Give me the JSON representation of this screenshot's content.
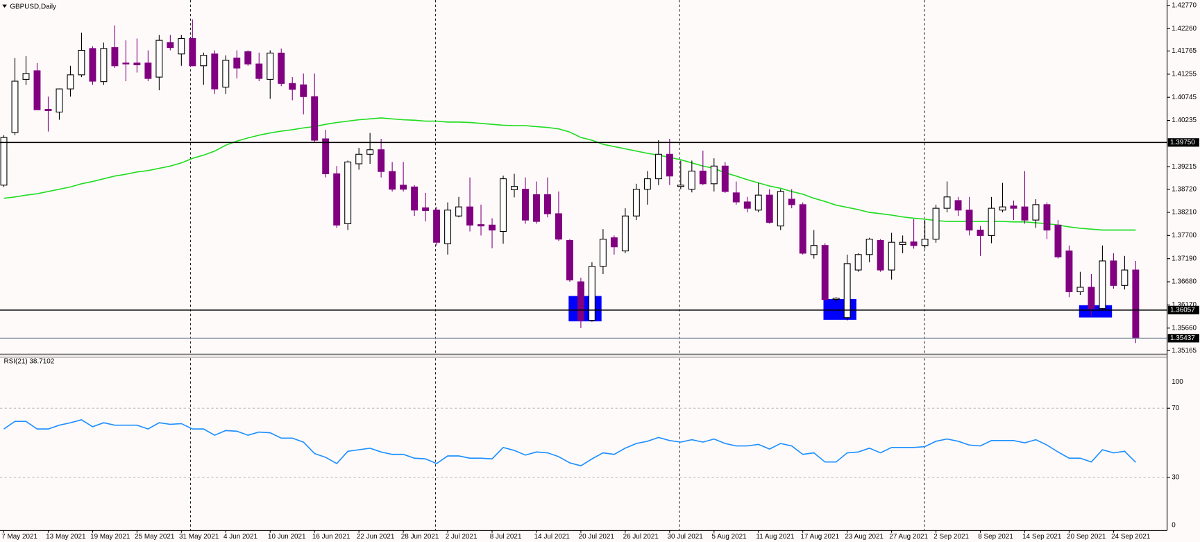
{
  "chart_data": [
    {
      "type": "candlestick",
      "title": "GBPUSD,Daily",
      "categories": [
        "7 May 2021",
        null,
        null,
        null,
        "13 May 2021",
        null,
        null,
        null,
        "19 May 2021",
        null,
        null,
        null,
        "25 May 2021",
        null,
        null,
        null,
        "31 May 2021",
        null,
        null,
        null,
        "4 Jun 2021",
        null,
        null,
        null,
        "10 Jun 2021",
        null,
        null,
        null,
        "16 Jun 2021",
        null,
        null,
        null,
        "22 Jun 2021",
        null,
        null,
        null,
        "28 Jun 2021",
        null,
        null,
        null,
        "2 Jul 2021",
        null,
        null,
        null,
        "8 Jul 2021",
        null,
        null,
        null,
        "14 Jul 2021",
        null,
        null,
        null,
        "20 Jul 2021",
        null,
        null,
        null,
        "26 Jul 2021",
        null,
        null,
        null,
        "30 Jul 2021",
        null,
        null,
        null,
        "5 Aug 2021",
        null,
        null,
        null,
        "11 Aug 2021",
        null,
        null,
        null,
        "17 Aug 2021",
        null,
        null,
        null,
        "23 Aug 2021",
        null,
        null,
        null,
        "27 Aug 2021",
        null,
        null,
        null,
        "2 Sep 2021",
        null,
        null,
        null,
        "8 Sep 2021",
        null,
        null,
        null,
        "14 Sep 2021",
        null,
        null,
        null,
        "20 Sep 2021",
        null,
        null,
        null,
        "24 Sep 2021",
        null,
        null
      ],
      "open": [
        1.3881,
        1.3997,
        1.4114,
        1.4133,
        1.4048,
        1.4042,
        1.4093,
        1.4124,
        1.4182,
        1.4109,
        1.4184,
        1.415,
        1.415,
        1.415,
        1.4119,
        1.4195,
        1.417,
        1.4204,
        1.4144,
        1.417,
        1.4097,
        1.4161,
        1.4175,
        1.4148,
        1.4114,
        1.4172,
        1.4105,
        1.4102,
        1.4076,
        1.3983,
        1.3906,
        1.3796,
        1.3928,
        1.3949,
        1.3959,
        1.3911,
        1.3881,
        1.3877,
        1.3831,
        1.3826,
        1.3752,
        1.3813,
        1.3833,
        1.3794,
        1.3793,
        1.3779,
        1.3871,
        1.3872,
        1.386,
        1.386,
        1.3818,
        1.3759,
        1.3668,
        1.3583,
        1.3702,
        1.3765,
        1.3736,
        1.3813,
        1.3872,
        1.3895,
        1.3949,
        1.3878,
        1.3872,
        1.3912,
        1.3884,
        1.3923,
        1.3864,
        1.3844,
        1.3826,
        1.3859,
        1.3791,
        1.385,
        1.3838,
        1.3728,
        1.3748,
        1.3629,
        1.3589,
        1.3694,
        1.3728,
        1.3759,
        1.3694,
        1.375,
        1.3756,
        1.3748,
        1.3762,
        1.383,
        1.3847,
        1.3826,
        1.3782,
        1.377,
        1.3826,
        1.3835,
        1.3833,
        1.3804,
        1.3838,
        1.3793,
        1.3736,
        1.3646,
        1.3656,
        1.3609,
        1.3714,
        1.366,
        1.3694
      ],
      "high": [
        1.3991,
        1.4161,
        1.4165,
        1.415,
        1.4076,
        1.4094,
        1.4144,
        1.4217,
        1.4187,
        1.4195,
        1.4233,
        1.42,
        1.4204,
        1.4178,
        1.4212,
        1.4212,
        1.4212,
        1.4246,
        1.4173,
        1.4178,
        1.4167,
        1.4178,
        1.4178,
        1.4173,
        1.4178,
        1.4182,
        1.4119,
        1.4127,
        1.4127,
        1.4003,
        1.3923,
        1.3935,
        1.3963,
        1.3996,
        1.3983,
        1.3932,
        1.3932,
        1.3881,
        1.3864,
        1.3833,
        1.3843,
        1.3855,
        1.3898,
        1.3838,
        1.3808,
        1.3902,
        1.3906,
        1.3898,
        1.3889,
        1.3898,
        1.3867,
        1.3762,
        1.3677,
        1.3711,
        1.3784,
        1.377,
        1.383,
        1.3884,
        1.3912,
        1.398,
        1.3983,
        1.3935,
        1.3935,
        1.3957,
        1.394,
        1.3932,
        1.3889,
        1.3855,
        1.3886,
        1.3872,
        1.3872,
        1.3872,
        1.3843,
        1.3782,
        1.3753,
        1.3634,
        1.3728,
        1.3731,
        1.3765,
        1.3762,
        1.3776,
        1.377,
        1.3806,
        1.3804,
        1.3838,
        1.3889,
        1.3855,
        1.3855,
        1.3791,
        1.3855,
        1.3886,
        1.3847,
        1.3912,
        1.385,
        1.3843,
        1.3804,
        1.3748,
        1.369,
        1.3685,
        1.3748,
        1.3731,
        1.3725,
        1.3714
      ],
      "low": [
        1.3877,
        1.3991,
        1.4102,
        1.4047,
        1.3999,
        1.4025,
        1.4076,
        1.4119,
        1.4102,
        1.4102,
        1.4139,
        1.411,
        1.4129,
        1.411,
        1.409,
        1.4178,
        1.4144,
        1.4143,
        1.4102,
        1.4082,
        1.4082,
        1.4116,
        1.4144,
        1.411,
        1.4071,
        1.4099,
        1.4068,
        1.4037,
        1.3974,
        1.3898,
        1.3787,
        1.3782,
        1.3915,
        1.3928,
        1.3898,
        1.3867,
        1.3867,
        1.3813,
        1.3801,
        1.3748,
        1.3728,
        1.381,
        1.3779,
        1.377,
        1.3742,
        1.3752,
        1.3854,
        1.3796,
        1.3796,
        1.381,
        1.3758,
        1.3668,
        1.3566,
        1.358,
        1.3685,
        1.3728,
        1.3731,
        1.3804,
        1.3838,
        1.3881,
        1.3881,
        1.3872,
        1.3865,
        1.3881,
        1.3867,
        1.3864,
        1.3838,
        1.3821,
        1.3821,
        1.3796,
        1.3782,
        1.383,
        1.3728,
        1.3719,
        1.3626,
        1.3622,
        1.3583,
        1.369,
        1.3711,
        1.369,
        1.3673,
        1.3731,
        1.3741,
        1.3741,
        1.3754,
        1.3821,
        1.3813,
        1.377,
        1.3725,
        1.3753,
        1.3821,
        1.3804,
        1.3796,
        1.3787,
        1.3762,
        1.3719,
        1.3634,
        1.3639,
        1.3592,
        1.3605,
        1.3653,
        1.3651,
        1.3533
      ],
      "close": [
        1.3986,
        1.411,
        1.4127,
        1.4047,
        1.4045,
        1.4093,
        1.4124,
        1.4178,
        1.411,
        1.4182,
        1.4144,
        1.4148,
        1.4146,
        1.4116,
        1.42,
        1.4184,
        1.4204,
        1.4144,
        1.4167,
        1.4093,
        1.4156,
        1.4139,
        1.4148,
        1.4116,
        1.4172,
        1.4105,
        1.4092,
        1.4076,
        1.398,
        1.3906,
        1.3793,
        1.3932,
        1.3949,
        1.3959,
        1.3911,
        1.3872,
        1.3872,
        1.3826,
        1.3825,
        1.3755,
        1.3826,
        1.3833,
        1.3793,
        1.3791,
        1.3782,
        1.3895,
        1.3878,
        1.3804,
        1.3801,
        1.3818,
        1.3762,
        1.3672,
        1.3583,
        1.3702,
        1.3762,
        1.3745,
        1.3813,
        1.3872,
        1.3895,
        1.3949,
        1.3901,
        1.3881,
        1.3912,
        1.3884,
        1.3923,
        1.3867,
        1.3844,
        1.383,
        1.3859,
        1.3799,
        1.3867,
        1.3838,
        1.3731,
        1.3748,
        1.3629,
        1.3632,
        1.3708,
        1.3728,
        1.3762,
        1.3694,
        1.3755,
        1.3755,
        1.3748,
        1.3762,
        1.383,
        1.3855,
        1.3826,
        1.3782,
        1.377,
        1.383,
        1.3833,
        1.383,
        1.3804,
        1.3838,
        1.3782,
        1.3723,
        1.3646,
        1.3656,
        1.3609,
        1.3714,
        1.366,
        1.3694,
        1.35437
      ],
      "up_color": "#ffffff",
      "down_color": "#800080",
      "overlay": {
        "type": "line",
        "color": "#22dd22",
        "values": [
          1.3852,
          1.3855,
          1.3859,
          1.3862,
          1.3867,
          1.3872,
          1.3877,
          1.3884,
          1.3889,
          1.3895,
          1.3901,
          1.3905,
          1.391,
          1.3913,
          1.3918,
          1.3923,
          1.393,
          1.394,
          1.3947,
          1.3956,
          1.3969,
          1.3978,
          1.3985,
          1.3991,
          1.3996,
          1.4,
          1.4003,
          1.4007,
          1.401,
          1.4015,
          1.4019,
          1.4022,
          1.4025,
          1.4027,
          1.4029,
          1.4027,
          1.4025,
          1.4024,
          1.4022,
          1.4022,
          1.402,
          1.402,
          1.4019,
          1.4017,
          1.4015,
          1.4013,
          1.4012,
          1.4012,
          1.401,
          1.4008,
          1.4005,
          1.3998,
          1.3986,
          1.398,
          1.3971,
          1.3966,
          1.3961,
          1.3956,
          1.3951,
          1.3947,
          1.3942,
          1.3937,
          1.393,
          1.3923,
          1.3918,
          1.3908,
          1.3901,
          1.3893,
          1.3886,
          1.3879,
          1.3874,
          1.3867,
          1.3861,
          1.3852,
          1.3845,
          1.3837,
          1.3832,
          1.3827,
          1.3821,
          1.3818,
          1.3815,
          1.3811,
          1.3808,
          1.3806,
          1.3803,
          1.3801,
          1.3801,
          1.3801,
          1.3801,
          1.3801,
          1.3801,
          1.38,
          1.38,
          1.3798,
          1.3796,
          1.3793,
          1.3789,
          1.3786,
          1.3784,
          1.3782,
          1.3782,
          1.3782,
          1.3782
        ]
      },
      "hlines": [
        {
          "value": 1.3975,
          "label": "1.39750",
          "color": "#000000"
        },
        {
          "value": 1.36057,
          "label": "1.36057",
          "color": "#000000"
        },
        {
          "value": 1.35437,
          "label": "1.35437",
          "color": "#778899"
        }
      ],
      "ylim": [
        1.35097,
        1.42889
      ],
      "yticks": [
        {
          "value": 1.4277,
          "label": "1.42770"
        },
        {
          "value": 1.4226,
          "label": "1.42260"
        },
        {
          "value": 1.41765,
          "label": "1.41765"
        },
        {
          "value": 1.41255,
          "label": "1.41255"
        },
        {
          "value": 1.40745,
          "label": "1.40745"
        },
        {
          "value": 1.40235,
          "label": "1.40235"
        },
        {
          "value": 1.39215,
          "label": "1.39215"
        },
        {
          "value": 1.3872,
          "label": "1.38720"
        },
        {
          "value": 1.3821,
          "label": "1.38210"
        },
        {
          "value": 1.377,
          "label": "1.37700"
        },
        {
          "value": 1.3719,
          "label": "1.37190"
        },
        {
          "value": 1.3668,
          "label": "1.36680"
        },
        {
          "value": 1.3617,
          "label": "1.36170"
        },
        {
          "value": 1.3566,
          "label": "1.35660"
        },
        {
          "value": 1.35165,
          "label": "1.35165"
        }
      ]
    },
    {
      "type": "line",
      "title": "RSI(21) 38.7102",
      "color": "#1e90ff",
      "values": [
        58.0,
        62.4,
        62.4,
        58.0,
        58.0,
        60.2,
        61.6,
        63.3,
        59.3,
        61.6,
        60.2,
        60.2,
        60.2,
        58.0,
        61.6,
        60.7,
        61.1,
        58.0,
        58.0,
        54.4,
        57.1,
        56.7,
        54.4,
        56.2,
        55.8,
        52.7,
        52.7,
        50.4,
        43.8,
        41.6,
        38.0,
        45.1,
        46.0,
        46.9,
        44.7,
        43.3,
        43.3,
        41.1,
        40.7,
        38.0,
        42.4,
        42.4,
        41.1,
        41.1,
        40.7,
        47.3,
        45.6,
        42.9,
        44.7,
        44.2,
        42.0,
        38.4,
        36.7,
        40.7,
        44.2,
        43.3,
        46.9,
        49.6,
        50.9,
        53.1,
        51.3,
        50.4,
        51.8,
        50.4,
        52.2,
        49.6,
        48.2,
        48.2,
        49.1,
        46.4,
        49.6,
        48.2,
        43.3,
        44.2,
        38.9,
        38.9,
        44.2,
        44.7,
        46.9,
        44.2,
        47.3,
        47.3,
        47.3,
        47.8,
        50.9,
        52.2,
        50.9,
        48.7,
        48.2,
        51.3,
        51.3,
        51.3,
        50.0,
        51.8,
        48.7,
        44.7,
        41.1,
        41.1,
        38.9,
        46.0,
        44.2,
        45.1,
        38.7102
      ],
      "ylim": [
        -0.7,
        98.9
      ],
      "yticks": [
        30,
        70
      ],
      "grid": true,
      "axis_labels": [
        "100",
        "0"
      ]
    }
  ]
}
